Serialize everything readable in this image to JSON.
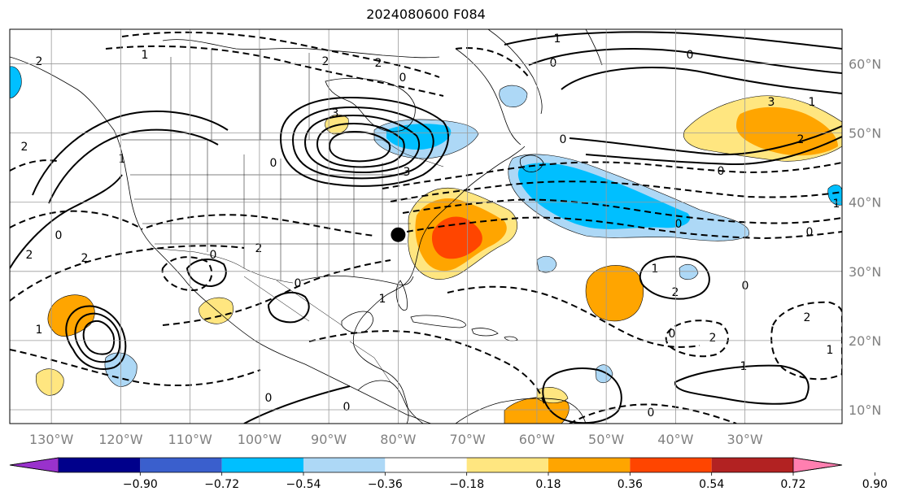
{
  "title": "2024080600 F084",
  "map": {
    "lon_ticks": [
      "130°W",
      "120°W",
      "110°W",
      "100°W",
      "90°W",
      "80°W",
      "70°W",
      "60°W",
      "50°W",
      "40°W",
      "30°W"
    ],
    "lat_ticks": [
      "60°N",
      "50°N",
      "40°N",
      "30°N",
      "20°N",
      "10°N"
    ],
    "lon_range": [
      -136,
      -16
    ],
    "lat_range": [
      8,
      65
    ],
    "grid": true,
    "marker": {
      "lon": -80.0,
      "lat": 35.3,
      "color": "#000000"
    }
  },
  "contour_labels": [
    "2",
    "1",
    "2",
    "0",
    "2",
    "3",
    "1",
    "0",
    "2",
    "0",
    "3",
    "2",
    "2",
    "2",
    "0",
    "1",
    "0",
    "1",
    "0",
    "0",
    "1",
    "2",
    "0",
    "2",
    "0",
    "1",
    "0",
    "0",
    "0",
    "0",
    "1",
    "0",
    "1",
    "0",
    "3",
    "2",
    "0",
    "1",
    "1",
    "2"
  ],
  "colorbar": {
    "ticks": [
      "−0.90",
      "−0.72",
      "−0.54",
      "−0.36",
      "−0.18",
      "0.18",
      "0.36",
      "0.54",
      "0.72",
      "0.90"
    ],
    "colors": [
      "#9932cc",
      "#00008b",
      "#3a5fcd",
      "#00bfff",
      "#add8f6",
      "#ffffff",
      "#ffe680",
      "#ffa500",
      "#ff4500",
      "#b22222",
      "#ff7fb0"
    ],
    "extend": "both"
  }
}
